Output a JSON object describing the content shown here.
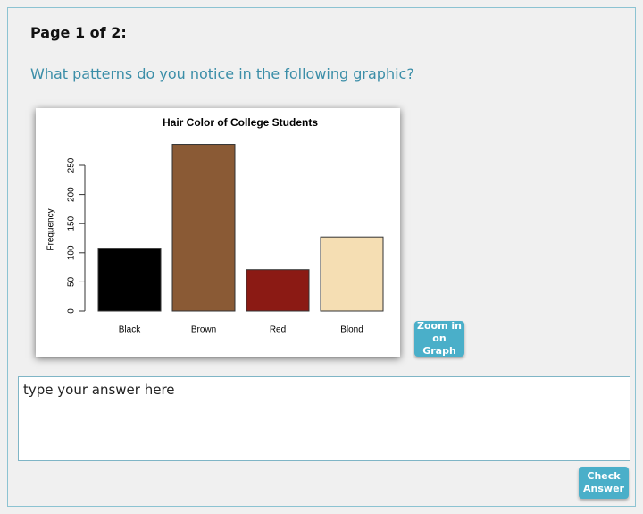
{
  "page": {
    "heading": "Page 1 of 2:",
    "question": "What patterns do you notice in the following graphic?",
    "zoom_button": "Zoom in on Graph",
    "answer_placeholder": "type your answer here",
    "check_button": "Check Answer"
  },
  "chart_data": {
    "type": "bar",
    "title": "Hair Color of College Students",
    "y_label": "Frequency",
    "categories": [
      "Black",
      "Brown",
      "Red",
      "Blond"
    ],
    "values": [
      108,
      286,
      71,
      127
    ],
    "colors": [
      "#000000",
      "#8a5a35",
      "#8b1a14",
      "#f5deb3"
    ],
    "ylim": [
      0,
      300
    ],
    "yticks": [
      0,
      50,
      100,
      150,
      200,
      250
    ],
    "grid": false
  }
}
